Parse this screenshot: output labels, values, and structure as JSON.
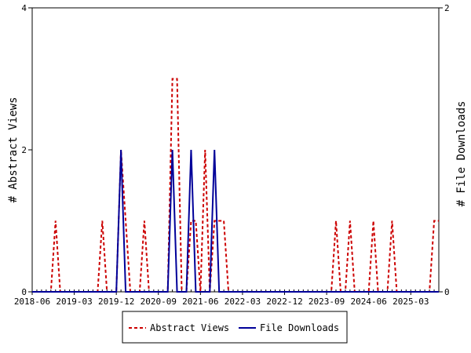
{
  "chart_data": {
    "type": "line",
    "title": "",
    "x_tick_labels": [
      "2018-06",
      "2019-03",
      "2019-12",
      "2020-09",
      "2021-06",
      "2022-03",
      "2022-12",
      "2023-09",
      "2024-06",
      "2025-03"
    ],
    "x_range": [
      "2018-06",
      "2025-09"
    ],
    "left_axis": {
      "label": "# Abstract Views",
      "range": [
        0,
        4
      ],
      "ticks": [
        "0",
        "2",
        "4"
      ]
    },
    "right_axis": {
      "label": "# File Downloads",
      "range": [
        0,
        2
      ],
      "ticks": [
        "0",
        "2"
      ]
    },
    "grid": false,
    "legend_position": "bottom",
    "series": [
      {
        "name": "Abstract Views",
        "axis": "left",
        "color": "#cc0000",
        "style": "dashed",
        "x": [
          "2018-06",
          "2018-07",
          "2018-08",
          "2018-09",
          "2018-10",
          "2018-11",
          "2018-12",
          "2019-01",
          "2019-02",
          "2019-03",
          "2019-04",
          "2019-05",
          "2019-06",
          "2019-07",
          "2019-08",
          "2019-09",
          "2019-10",
          "2019-11",
          "2019-12",
          "2020-01",
          "2020-02",
          "2020-03",
          "2020-04",
          "2020-05",
          "2020-06",
          "2020-07",
          "2020-08",
          "2020-09",
          "2020-10",
          "2020-11",
          "2020-12",
          "2021-01",
          "2021-02",
          "2021-03",
          "2021-04",
          "2021-05",
          "2021-06",
          "2021-07",
          "2021-08",
          "2021-09",
          "2021-10",
          "2021-11",
          "2021-12",
          "2022-01",
          "2022-02",
          "2022-03",
          "2022-04",
          "2022-05",
          "2022-06",
          "2022-07",
          "2022-08",
          "2022-09",
          "2022-10",
          "2022-11",
          "2022-12",
          "2023-01",
          "2023-02",
          "2023-03",
          "2023-04",
          "2023-05",
          "2023-06",
          "2023-07",
          "2023-08",
          "2023-09",
          "2023-10",
          "2023-11",
          "2023-12",
          "2024-01",
          "2024-02",
          "2024-03",
          "2024-04",
          "2024-05",
          "2024-06",
          "2024-07",
          "2024-08",
          "2024-09",
          "2024-10",
          "2024-11",
          "2024-12",
          "2025-01",
          "2025-02",
          "2025-03",
          "2025-04",
          "2025-05",
          "2025-06",
          "2025-07",
          "2025-08",
          "2025-09"
        ],
        "values": [
          0,
          0,
          0,
          0,
          0,
          1,
          0,
          0,
          0,
          0,
          0,
          0,
          0,
          0,
          0,
          1,
          0,
          0,
          0,
          2,
          1,
          0,
          0,
          0,
          1,
          0,
          0,
          0,
          0,
          0,
          3,
          3,
          0,
          0,
          1,
          1,
          0,
          2,
          0,
          1,
          1,
          1,
          0,
          0,
          0,
          0,
          0,
          0,
          0,
          0,
          0,
          0,
          0,
          0,
          0,
          0,
          0,
          0,
          0,
          0,
          0,
          0,
          0,
          0,
          0,
          1,
          0,
          0,
          1,
          0,
          0,
          0,
          0,
          1,
          0,
          0,
          0,
          1,
          0,
          0,
          0,
          0,
          0,
          0,
          0,
          0,
          1,
          1
        ]
      },
      {
        "name": "File Downloads",
        "axis": "right",
        "color": "#000099",
        "style": "solid",
        "x": [
          "2018-06",
          "2018-07",
          "2018-08",
          "2018-09",
          "2018-10",
          "2018-11",
          "2018-12",
          "2019-01",
          "2019-02",
          "2019-03",
          "2019-04",
          "2019-05",
          "2019-06",
          "2019-07",
          "2019-08",
          "2019-09",
          "2019-10",
          "2019-11",
          "2019-12",
          "2020-01",
          "2020-02",
          "2020-03",
          "2020-04",
          "2020-05",
          "2020-06",
          "2020-07",
          "2020-08",
          "2020-09",
          "2020-10",
          "2020-11",
          "2020-12",
          "2021-01",
          "2021-02",
          "2021-03",
          "2021-04",
          "2021-05",
          "2021-06",
          "2021-07",
          "2021-08",
          "2021-09",
          "2021-10",
          "2021-11",
          "2021-12",
          "2022-01",
          "2022-02",
          "2022-03",
          "2022-04",
          "2022-05",
          "2022-06",
          "2022-07",
          "2022-08",
          "2022-09",
          "2022-10",
          "2022-11",
          "2022-12",
          "2023-01",
          "2023-02",
          "2023-03",
          "2023-04",
          "2023-05",
          "2023-06",
          "2023-07",
          "2023-08",
          "2023-09",
          "2023-10",
          "2023-11",
          "2023-12",
          "2024-01",
          "2024-02",
          "2024-03",
          "2024-04",
          "2024-05",
          "2024-06",
          "2024-07",
          "2024-08",
          "2024-09",
          "2024-10",
          "2024-11",
          "2024-12",
          "2025-01",
          "2025-02",
          "2025-03",
          "2025-04",
          "2025-05",
          "2025-06",
          "2025-07",
          "2025-08",
          "2025-09"
        ],
        "values": [
          0,
          0,
          0,
          0,
          0,
          0,
          0,
          0,
          0,
          0,
          0,
          0,
          0,
          0,
          0,
          0,
          0,
          0,
          0,
          1,
          0,
          0,
          0,
          0,
          0,
          0,
          0,
          0,
          0,
          0,
          1,
          0,
          0,
          0,
          1,
          0,
          0,
          0,
          0,
          1,
          0,
          0,
          0,
          0,
          0,
          0,
          0,
          0,
          0,
          0,
          0,
          0,
          0,
          0,
          0,
          0,
          0,
          0,
          0,
          0,
          0,
          0,
          0,
          0,
          0,
          0,
          0,
          0,
          0,
          0,
          0,
          0,
          0,
          0,
          0,
          0,
          0,
          0,
          0,
          0,
          0,
          0,
          0,
          0,
          0,
          0,
          0,
          0
        ]
      }
    ]
  }
}
